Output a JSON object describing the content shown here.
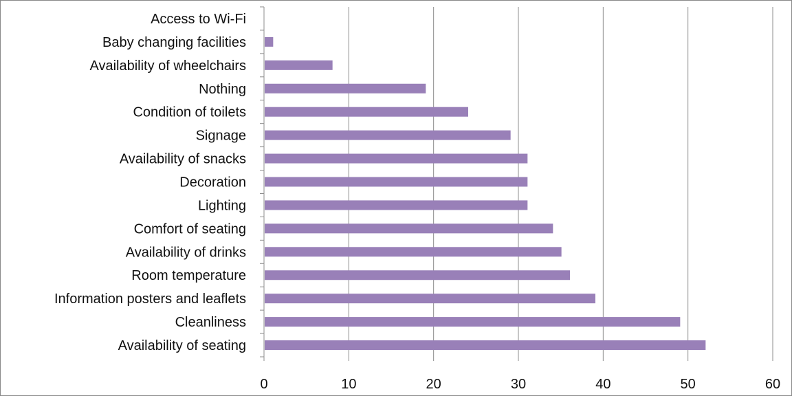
{
  "chart_data": {
    "type": "bar",
    "orientation": "horizontal",
    "categories": [
      "Availability of seating",
      "Cleanliness",
      "Information posters and leaflets",
      "Room temperature",
      "Availability of drinks",
      "Comfort of seating",
      "Lighting",
      "Decoration",
      "Availability of snacks",
      "Signage",
      "Condition of toilets",
      "Nothing",
      "Availability of wheelchairs",
      "Baby changing facilities",
      "Access to Wi-Fi"
    ],
    "values": [
      52,
      49,
      39,
      36,
      35,
      34,
      31,
      31,
      31,
      29,
      24,
      19,
      8,
      1,
      0
    ],
    "xlim": [
      0,
      60
    ],
    "x_ticks": [
      "0",
      "10",
      "20",
      "30",
      "40",
      "50",
      "60"
    ],
    "grid": "vertical",
    "legend": "none",
    "title": "",
    "xlabel": "",
    "ylabel": "",
    "bar_color": "#9980b8"
  }
}
